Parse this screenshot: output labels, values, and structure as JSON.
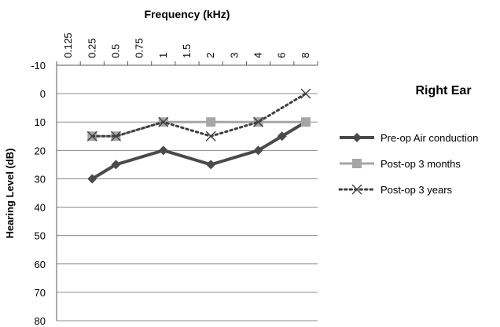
{
  "chart_data": {
    "type": "line",
    "title": "",
    "side_title": "Right Ear",
    "xlabel": "Frequency (kHz)",
    "ylabel": "Hearing Level (dB)",
    "categories": [
      "0.125",
      "0.25",
      "0.5",
      "0.75",
      "1",
      "1.5",
      "2",
      "3",
      "4",
      "6",
      "8"
    ],
    "ylim": [
      -10,
      80
    ],
    "y_ticks": [
      -10,
      0,
      10,
      20,
      30,
      40,
      50,
      60,
      70,
      80
    ],
    "y_inverted": true,
    "x_axis_position": "top",
    "grid": "horizontal",
    "legend_position": "right",
    "series": [
      {
        "name": "Pre-op Air conduction",
        "color": "#4a4a4a",
        "style": "solid",
        "marker": "diamond",
        "points": [
          {
            "x": "0.25",
            "y": 30
          },
          {
            "x": "0.5",
            "y": 25
          },
          {
            "x": "1",
            "y": 20
          },
          {
            "x": "2",
            "y": 25
          },
          {
            "x": "4",
            "y": 20
          },
          {
            "x": "6",
            "y": 15
          },
          {
            "x": "8",
            "y": 10
          }
        ]
      },
      {
        "name": "Post-op 3 months",
        "color": "#a6a6a6",
        "style": "solid",
        "marker": "square",
        "points": [
          {
            "x": "0.25",
            "y": 15
          },
          {
            "x": "0.5",
            "y": 15
          },
          {
            "x": "1",
            "y": 10
          },
          {
            "x": "2",
            "y": 10
          },
          {
            "x": "4",
            "y": 10
          },
          {
            "x": "8",
            "y": 10
          }
        ]
      },
      {
        "name": "Post-op 3 years",
        "color": "#404040",
        "style": "dotted",
        "marker": "x",
        "points": [
          {
            "x": "0.25",
            "y": 15
          },
          {
            "x": "0.5",
            "y": 15
          },
          {
            "x": "1",
            "y": 10
          },
          {
            "x": "2",
            "y": 15
          },
          {
            "x": "4",
            "y": 10
          },
          {
            "x": "8",
            "y": 0
          }
        ]
      }
    ]
  }
}
